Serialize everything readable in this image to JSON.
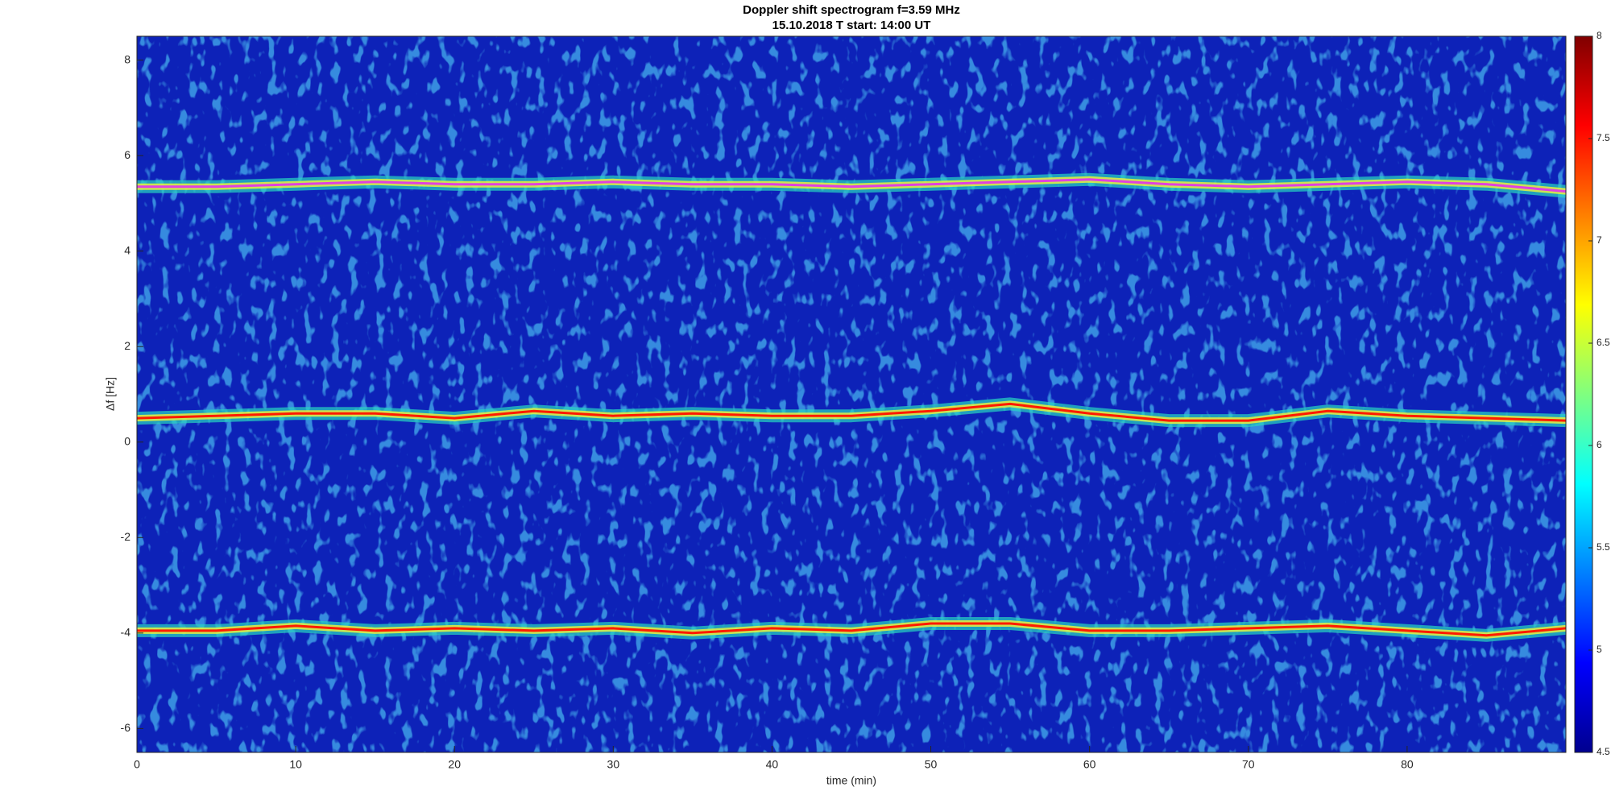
{
  "chart_data": {
    "type": "spectrogram",
    "title": "Doppler shift spectrogram f=3.59 MHz",
    "subtitle": "15.10.2018   T start: 14:00 UT",
    "xlabel": "time (min)",
    "ylabel": "Δf [Hz]",
    "xlim": [
      0,
      90
    ],
    "ylim": [
      -6.5,
      8.5
    ],
    "xticks": [
      0,
      10,
      20,
      30,
      40,
      50,
      60,
      70,
      80
    ],
    "yticks": [
      -6,
      -4,
      -2,
      0,
      2,
      4,
      6,
      8
    ],
    "background": "#0d22b8",
    "x": [
      0,
      5,
      10,
      15,
      20,
      25,
      30,
      35,
      40,
      45,
      50,
      55,
      60,
      65,
      70,
      75,
      80,
      85,
      90
    ],
    "series": [
      {
        "color": "#e040e0",
        "values": [
          5.35,
          5.35,
          5.4,
          5.45,
          5.4,
          5.4,
          5.45,
          5.4,
          5.4,
          5.35,
          5.4,
          5.45,
          5.5,
          5.4,
          5.35,
          5.4,
          5.45,
          5.4,
          5.25
        ]
      },
      {
        "color": "#ff1a00",
        "values": [
          0.5,
          0.55,
          0.6,
          0.6,
          0.5,
          0.65,
          0.55,
          0.6,
          0.55,
          0.55,
          0.65,
          0.8,
          0.6,
          0.45,
          0.45,
          0.65,
          0.55,
          0.5,
          0.45
        ]
      },
      {
        "color": "#ff1a00",
        "values": [
          -3.95,
          -3.95,
          -3.85,
          -3.95,
          -3.9,
          -3.95,
          -3.9,
          -4.0,
          -3.9,
          -3.95,
          -3.8,
          -3.8,
          -3.95,
          -3.95,
          -3.9,
          -3.85,
          -3.95,
          -4.05,
          -3.9
        ]
      }
    ],
    "colorbar": {
      "colormap": "jet",
      "clim": [
        4.5,
        8
      ],
      "ticks": [
        4.5,
        5,
        5.5,
        6,
        6.5,
        7,
        7.5,
        8
      ]
    }
  }
}
